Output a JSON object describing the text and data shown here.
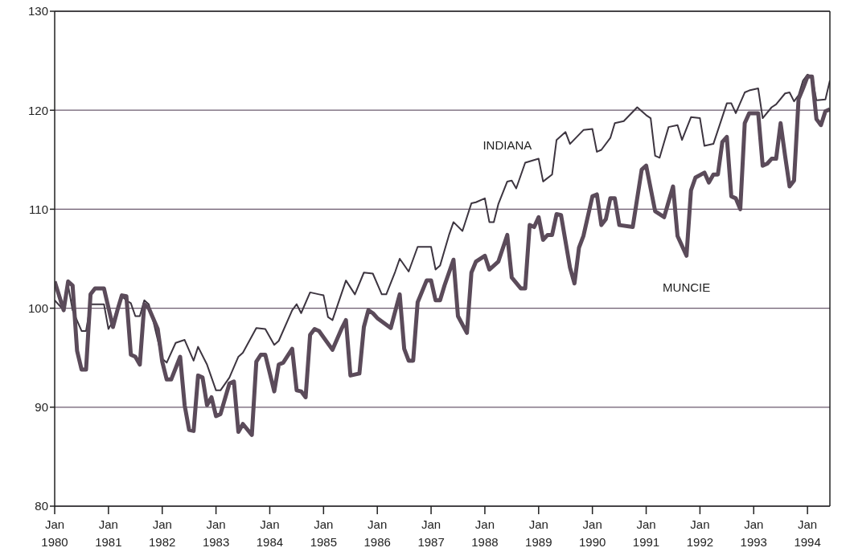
{
  "chart_data": {
    "type": "line",
    "legend": false,
    "grid": "y",
    "marker": "none",
    "line_style": "solid",
    "xlim": [
      "1980-01",
      "1994-06"
    ],
    "xticks": [
      {
        "value": "1980-01",
        "label": "Jan 1980"
      },
      {
        "value": "1981-01",
        "label": "Jan 1981"
      },
      {
        "value": "1982-01",
        "label": "Jan 1982"
      },
      {
        "value": "1983-01",
        "label": "Jan 1983"
      },
      {
        "value": "1984-01",
        "label": "Jan 1984"
      },
      {
        "value": "1985-01",
        "label": "Jan 1985"
      },
      {
        "value": "1986-01",
        "label": "Jan 1986"
      },
      {
        "value": "1987-01",
        "label": "Jan 1987"
      },
      {
        "value": "1988-01",
        "label": "Jan 1988"
      },
      {
        "value": "1989-01",
        "label": "Jan 1989"
      },
      {
        "value": "1990-01",
        "label": "Jan 1990"
      },
      {
        "value": "1991-01",
        "label": "Jan 1991"
      },
      {
        "value": "1992-01",
        "label": "Jan 1992"
      },
      {
        "value": "1993-01",
        "label": "Jan 1993"
      },
      {
        "value": "1994-01",
        "label": "Jan 1994"
      }
    ],
    "ylim": [
      80,
      130
    ],
    "yticks": [
      80,
      90,
      100,
      110,
      120,
      130
    ],
    "series": [
      {
        "name": "INDIANA",
        "color": "#3d3540",
        "x": [
          "1980-01",
          "1980-03",
          "1980-04",
          "1980-05",
          "1980-07",
          "1980-08",
          "1980-09",
          "1980-12",
          "1981-01",
          "1981-02",
          "1981-04",
          "1981-05",
          "1981-06",
          "1981-07",
          "1981-08",
          "1981-09",
          "1981-10",
          "1981-11",
          "1982-01",
          "1982-02",
          "1982-04",
          "1982-06",
          "1982-08",
          "1982-09",
          "1982-11",
          "1983-01",
          "1983-02",
          "1983-04",
          "1983-06",
          "1983-07",
          "1983-10",
          "1983-12",
          "1984-02",
          "1984-03",
          "1984-06",
          "1984-07",
          "1984-08",
          "1984-10",
          "1984-12",
          "1985-01",
          "1985-02",
          "1985-03",
          "1985-06",
          "1985-08",
          "1985-10",
          "1985-12",
          "1986-02",
          "1986-03",
          "1986-05",
          "1986-06",
          "1986-08",
          "1986-10",
          "1987-01",
          "1987-02",
          "1987-03",
          "1987-05",
          "1987-06",
          "1987-08",
          "1987-10",
          "1987-11",
          "1988-01",
          "1988-02",
          "1988-03",
          "1988-04",
          "1988-06",
          "1988-07",
          "1988-08",
          "1988-10",
          "1989-01",
          "1989-02",
          "1989-04",
          "1989-05",
          "1989-07",
          "1989-08",
          "1989-11",
          "1990-01",
          "1990-02",
          "1990-03",
          "1990-05",
          "1990-06",
          "1990-08",
          "1990-11",
          "1991-01",
          "1991-02",
          "1991-03",
          "1991-04",
          "1991-06",
          "1991-08",
          "1991-09",
          "1991-11",
          "1992-01",
          "1992-02",
          "1992-04",
          "1992-07",
          "1992-08",
          "1992-09",
          "1992-11",
          "1992-12",
          "1993-02",
          "1993-03",
          "1993-05",
          "1993-06",
          "1993-08",
          "1993-09",
          "1993-10",
          "1993-11",
          "1993-12",
          "1994-01",
          "1994-02",
          "1994-03",
          "1994-05",
          "1994-06"
        ],
        "values": [
          100.8,
          99.8,
          102.3,
          99.8,
          97.7,
          97.7,
          100.4,
          100.4,
          97.9,
          98.7,
          101.2,
          100.8,
          100.5,
          99.2,
          99.2,
          100.8,
          100.4,
          98.7,
          94.9,
          94.5,
          96.5,
          96.8,
          94.7,
          96.1,
          94.3,
          91.7,
          91.7,
          93.0,
          95.1,
          95.5,
          98.0,
          97.9,
          96.3,
          96.7,
          99.8,
          100.4,
          99.5,
          101.6,
          101.4,
          101.3,
          99.1,
          98.8,
          102.8,
          101.4,
          103.6,
          103.5,
          101.4,
          101.4,
          103.7,
          105.0,
          103.7,
          106.2,
          106.2,
          103.9,
          104.3,
          107.4,
          108.7,
          107.8,
          110.6,
          110.7,
          111.1,
          108.7,
          108.7,
          110.5,
          112.8,
          112.9,
          112.1,
          114.7,
          115.1,
          112.8,
          113.5,
          117.0,
          117.8,
          116.6,
          118.0,
          118.1,
          115.8,
          116.0,
          117.2,
          118.7,
          118.9,
          120.3,
          119.5,
          119.2,
          115.4,
          115.2,
          118.3,
          118.5,
          117.0,
          119.3,
          119.2,
          116.4,
          116.6,
          120.7,
          120.7,
          119.7,
          121.8,
          122.0,
          122.2,
          119.2,
          120.3,
          120.6,
          121.7,
          121.8,
          120.9,
          121.5,
          123.0,
          123.6,
          123.4,
          121.0,
          121.1,
          123.0
        ]
      },
      {
        "name": "MUNCIE",
        "color": "#5b4b5a",
        "x": [
          "1980-01",
          "1980-03",
          "1980-04",
          "1980-05",
          "1980-06",
          "1980-07",
          "1980-08",
          "1980-09",
          "1980-10",
          "1980-12",
          "1981-02",
          "1981-03",
          "1981-04",
          "1981-05",
          "1981-06",
          "1981-07",
          "1981-08",
          "1981-09",
          "1981-10",
          "1981-12",
          "1982-01",
          "1982-02",
          "1982-03",
          "1982-05",
          "1982-06",
          "1982-07",
          "1982-08",
          "1982-09",
          "1982-10",
          "1982-11",
          "1982-12",
          "1983-01",
          "1983-02",
          "1983-04",
          "1983-05",
          "1983-06",
          "1983-07",
          "1983-09",
          "1983-10",
          "1983-11",
          "1983-12",
          "1984-02",
          "1984-03",
          "1984-04",
          "1984-06",
          "1984-07",
          "1984-08",
          "1984-09",
          "1984-10",
          "1984-11",
          "1984-12",
          "1985-03",
          "1985-05",
          "1985-06",
          "1985-07",
          "1985-09",
          "1985-10",
          "1985-11",
          "1985-12",
          "1986-01",
          "1986-04",
          "1986-06",
          "1986-07",
          "1986-08",
          "1986-09",
          "1986-10",
          "1986-12",
          "1987-01",
          "1987-02",
          "1987-03",
          "1987-04",
          "1987-06",
          "1987-07",
          "1987-09",
          "1987-10",
          "1987-11",
          "1988-01",
          "1988-02",
          "1988-04",
          "1988-06",
          "1988-07",
          "1988-09",
          "1988-10",
          "1988-11",
          "1988-12",
          "1989-01",
          "1989-02",
          "1989-03",
          "1989-04",
          "1989-05",
          "1989-06",
          "1989-08",
          "1989-09",
          "1989-10",
          "1989-11",
          "1990-01",
          "1990-02",
          "1990-03",
          "1990-04",
          "1990-05",
          "1990-06",
          "1990-07",
          "1990-10",
          "1990-12",
          "1991-01",
          "1991-03",
          "1991-05",
          "1991-07",
          "1991-08",
          "1991-10",
          "1991-11",
          "1991-12",
          "1992-02",
          "1992-03",
          "1992-04",
          "1992-05",
          "1992-06",
          "1992-07",
          "1992-08",
          "1992-09",
          "1992-10",
          "1992-11",
          "1992-12",
          "1993-02",
          "1993-03",
          "1993-04",
          "1993-05",
          "1993-06",
          "1993-07",
          "1993-08",
          "1993-09",
          "1993-10",
          "1993-11",
          "1993-12",
          "1994-01",
          "1994-02",
          "1994-03",
          "1994-04",
          "1994-05",
          "1994-06"
        ],
        "values": [
          102.7,
          99.8,
          102.7,
          102.3,
          95.7,
          93.8,
          93.8,
          101.4,
          102.0,
          102.0,
          98.1,
          99.8,
          101.3,
          101.2,
          95.3,
          95.1,
          94.3,
          100.4,
          100.0,
          97.9,
          94.6,
          92.8,
          92.8,
          95.1,
          90.2,
          87.7,
          87.6,
          93.2,
          93.0,
          90.2,
          91.0,
          89.1,
          89.3,
          92.4,
          92.6,
          87.5,
          88.3,
          87.2,
          94.6,
          95.3,
          95.3,
          91.6,
          94.3,
          94.5,
          95.9,
          91.7,
          91.6,
          91.0,
          97.3,
          97.9,
          97.7,
          95.8,
          97.9,
          98.8,
          93.2,
          93.4,
          98.1,
          99.8,
          99.5,
          99.0,
          98.0,
          101.4,
          95.9,
          94.7,
          94.7,
          100.6,
          102.8,
          102.8,
          100.8,
          100.8,
          102.3,
          104.9,
          99.2,
          97.5,
          103.6,
          104.7,
          105.3,
          103.9,
          104.7,
          107.4,
          103.1,
          102.0,
          102.0,
          108.4,
          108.2,
          109.2,
          106.9,
          107.4,
          107.4,
          109.5,
          109.4,
          104.1,
          102.5,
          106.1,
          107.3,
          111.3,
          111.5,
          108.4,
          109.0,
          111.1,
          111.1,
          108.4,
          108.2,
          114.0,
          114.4,
          109.8,
          109.2,
          112.3,
          107.3,
          105.3,
          111.9,
          113.2,
          113.7,
          112.7,
          113.5,
          113.5,
          116.8,
          117.3,
          111.3,
          111.1,
          110.0,
          118.7,
          119.7,
          119.7,
          114.4,
          114.6,
          115.1,
          115.1,
          118.7,
          115.4,
          112.3,
          112.9,
          121.1,
          122.2,
          123.4,
          123.4,
          119.1,
          118.5,
          119.9,
          120.1
        ]
      }
    ]
  }
}
